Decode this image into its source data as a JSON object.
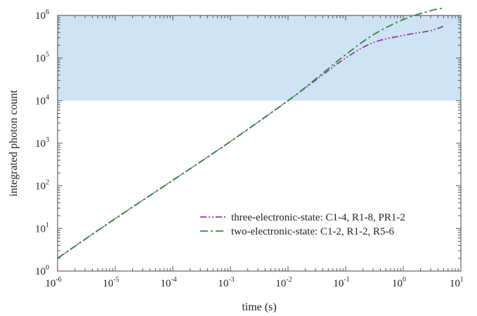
{
  "chart_data": {
    "type": "line",
    "title": "",
    "xlabel": "time (s)",
    "ylabel": "integrated photon count",
    "xscale": "log",
    "yscale": "log",
    "xlim": [
      1e-06,
      10
    ],
    "ylim": [
      1,
      1000000.0
    ],
    "grid": false,
    "legend_position": "lower-right",
    "x_ticks": [
      {
        "base": "10",
        "exp": "-6"
      },
      {
        "base": "10",
        "exp": "-5"
      },
      {
        "base": "10",
        "exp": "-4"
      },
      {
        "base": "10",
        "exp": "-3"
      },
      {
        "base": "10",
        "exp": "-2"
      },
      {
        "base": "10",
        "exp": "-1"
      },
      {
        "base": "10",
        "exp": "0"
      },
      {
        "base": "10",
        "exp": "1"
      }
    ],
    "y_ticks": [
      {
        "base": "10",
        "exp": "0"
      },
      {
        "base": "10",
        "exp": "1"
      },
      {
        "base": "10",
        "exp": "2"
      },
      {
        "base": "10",
        "exp": "3"
      },
      {
        "base": "10",
        "exp": "4"
      },
      {
        "base": "10",
        "exp": "5"
      },
      {
        "base": "10",
        "exp": "6"
      }
    ],
    "shaded_band": {
      "y_from": 10000,
      "y_to": 1000000,
      "color": "#cfe3f5"
    },
    "series": [
      {
        "name": "three-electronic-state: C1-4, R1-8, PR1-2",
        "color": "#8e3fa0",
        "dash": "dash-dot-dot",
        "x": [
          1e-06,
          1e-05,
          0.0001,
          0.001,
          0.01,
          0.03,
          0.1,
          0.3,
          1,
          3,
          5
        ],
        "y": [
          2,
          17,
          135,
          1100,
          10000,
          30000,
          100000,
          230000,
          340000,
          440000,
          560000
        ]
      },
      {
        "name": "two-electronic-state: C1-2, R1-2, R5-6",
        "color": "#2e8b3a",
        "dash": "dash-dot",
        "x": [
          1e-06,
          1e-05,
          0.0001,
          0.001,
          0.01,
          0.03,
          0.1,
          0.3,
          1,
          3,
          5
        ],
        "y": [
          2,
          17,
          135,
          1100,
          10000,
          32000,
          120000,
          350000,
          800000,
          1300000,
          1480000
        ]
      }
    ]
  }
}
